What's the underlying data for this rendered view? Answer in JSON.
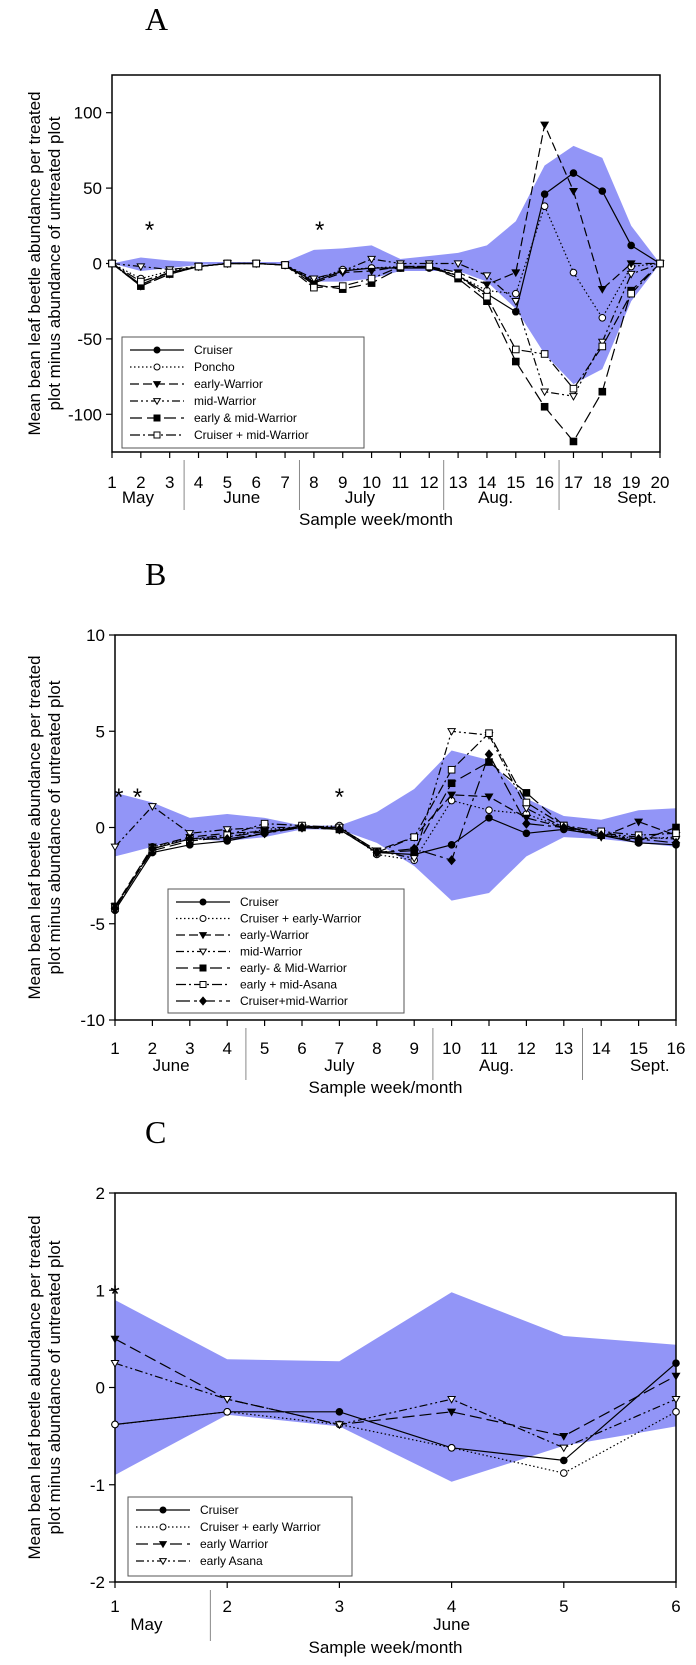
{
  "chart_data": [
    {
      "type": "line",
      "panel": "A",
      "ylabel": "Mean bean leaf beetle abundance per treated plot minus abundance of untreated plot",
      "xlabel": "Sample week/month",
      "ylim": [
        -125,
        125
      ],
      "yticks": [
        100,
        50,
        0,
        -50,
        -100
      ],
      "x": [
        1,
        2,
        3,
        4,
        5,
        6,
        7,
        8,
        9,
        10,
        11,
        12,
        13,
        14,
        15,
        16,
        17,
        18,
        19,
        20
      ],
      "months": [
        {
          "label": "May",
          "center": 1.9
        },
        {
          "label": "June",
          "center": 5.5
        },
        {
          "label": "July",
          "center": 9.6
        },
        {
          "label": "Aug.",
          "center": 14.3
        },
        {
          "label": "Sept.",
          "center": 19.2
        }
      ],
      "month_dividers": [
        3.5,
        7.5,
        12.5,
        16.5
      ],
      "asterisks": [
        2.3,
        8.2
      ],
      "band": {
        "upper": [
          0,
          4,
          2,
          1,
          1,
          1,
          1,
          9,
          10,
          12,
          3,
          5,
          7,
          12,
          28,
          65,
          78,
          70,
          25,
          0
        ],
        "lower": [
          0,
          -5,
          -3,
          -1,
          0,
          0,
          -1,
          -12,
          -12,
          -10,
          -5,
          -5,
          -5,
          -12,
          -30,
          -60,
          -80,
          -70,
          -25,
          0
        ]
      },
      "series": [
        {
          "name": "Cruiser",
          "marker": "filled-circle",
          "dash": "",
          "values": [
            0,
            -14,
            -6,
            -2,
            0,
            0,
            -1,
            -12,
            -5,
            -3,
            -3,
            -3,
            -8,
            -20,
            -32,
            46,
            60,
            48,
            12,
            0
          ]
        },
        {
          "name": "Poncho",
          "marker": "open-circle",
          "dash": "1.5,2.5",
          "values": [
            0,
            -10,
            -5,
            -2,
            0,
            0,
            -1,
            -11,
            -4,
            -3,
            -2,
            -2,
            -8,
            -18,
            -20,
            38,
            -6,
            -36,
            -2,
            0
          ]
        },
        {
          "name": "early-Warrior",
          "marker": "filled-triangle",
          "dash": "9,4",
          "values": [
            0,
            -15,
            -7,
            -2,
            0,
            0,
            -1,
            -13,
            -6,
            -5,
            -2,
            -2,
            -6,
            -14,
            -6,
            92,
            48,
            -17,
            0,
            0
          ]
        },
        {
          "name": "mid-Warrior",
          "marker": "open-triangle",
          "dash": "8,3,2,3,2,3",
          "values": [
            0,
            -2,
            -4,
            -2,
            0,
            0,
            -1,
            -10,
            -5,
            3,
            0,
            0,
            0,
            -8,
            -25,
            -85,
            -88,
            -52,
            -7,
            0
          ]
        },
        {
          "name": "early & mid-Warrior",
          "marker": "filled-square",
          "dash": "12,5",
          "values": [
            0,
            -15,
            -7,
            -2,
            0,
            0,
            -1,
            -14,
            -17,
            -13,
            -3,
            -2,
            -10,
            -25,
            -65,
            -95,
            -118,
            -85,
            -18,
            0
          ]
        },
        {
          "name": "Cruiser + mid-Warrior",
          "marker": "open-square",
          "dash": "10,3,2,3",
          "values": [
            0,
            -12,
            -6,
            -2,
            0,
            0,
            -1,
            -16,
            -15,
            -10,
            -2,
            -2,
            -8,
            -22,
            -57,
            -60,
            -83,
            -55,
            -20,
            0
          ]
        }
      ]
    },
    {
      "type": "line",
      "panel": "B",
      "ylabel": "Mean bean leaf beetle abundance per treated plot minus abundance of untreated plot",
      "xlabel": "Sample week/month",
      "ylim": [
        -10,
        10
      ],
      "yticks": [
        10,
        5,
        0,
        -5,
        -10
      ],
      "x": [
        1,
        2,
        3,
        4,
        5,
        6,
        7,
        8,
        9,
        10,
        11,
        12,
        13,
        14,
        15,
        16
      ],
      "months": [
        {
          "label": "June",
          "center": 2.5
        },
        {
          "label": "July",
          "center": 7.0
        },
        {
          "label": "Aug.",
          "center": 11.2
        },
        {
          "label": "Sept.",
          "center": 15.3
        }
      ],
      "month_dividers": [
        4.5,
        9.5,
        13.5
      ],
      "asterisks": [
        1.1,
        1.6,
        7.0
      ],
      "band": {
        "upper": [
          1.8,
          1.3,
          0.5,
          0.7,
          0.5,
          0.1,
          0.1,
          0.8,
          2.0,
          4.0,
          3.5,
          1.5,
          0.6,
          0.4,
          0.9,
          1.0
        ],
        "lower": [
          -1.5,
          -1.0,
          -0.6,
          -0.7,
          -0.5,
          -0.1,
          -0.1,
          -0.8,
          -2.0,
          -3.8,
          -3.4,
          -1.5,
          -0.5,
          -0.6,
          -0.8,
          -1.0
        ]
      },
      "series": [
        {
          "name": "Cruiser",
          "marker": "filled-circle",
          "dash": "",
          "values": [
            -4.3,
            -1.3,
            -0.9,
            -0.7,
            -0.3,
            0.1,
            -0.1,
            -1.3,
            -1.4,
            -0.9,
            0.5,
            -0.3,
            -0.1,
            -0.4,
            -0.8,
            -0.9
          ]
        },
        {
          "name": "Cruiser + early-Warrior",
          "marker": "open-circle",
          "dash": "1.5,2.5",
          "values": [
            -4.2,
            -1.0,
            -0.6,
            -0.5,
            -0.1,
            0.0,
            0.1,
            -1.4,
            -1.7,
            1.4,
            0.9,
            0.7,
            0.0,
            -0.3,
            -0.6,
            -0.5
          ]
        },
        {
          "name": "early-Warrior",
          "marker": "filled-triangle",
          "dash": "9,4",
          "values": [
            -4.1,
            -1.0,
            -0.5,
            -0.3,
            -0.2,
            0.0,
            0.0,
            -1.2,
            -0.5,
            1.7,
            1.6,
            0.5,
            0.0,
            -0.5,
            0.3,
            -0.4
          ]
        },
        {
          "name": "mid-Warrior",
          "marker": "open-triangle",
          "dash": "8,3,2,3,2,3",
          "values": [
            -1.0,
            1.1,
            -0.3,
            -0.1,
            0.0,
            0.0,
            0.0,
            -1.2,
            -1.6,
            5.0,
            4.8,
            1.0,
            0.0,
            -0.3,
            -0.5,
            -0.6
          ]
        },
        {
          "name": "early- & Mid-Warrior",
          "marker": "filled-square",
          "dash": "12,5",
          "values": [
            -4.1,
            -1.2,
            -0.7,
            -0.5,
            -0.2,
            0.0,
            -0.1,
            -1.3,
            -1.2,
            2.3,
            3.4,
            1.8,
            0.1,
            -0.4,
            -0.7,
            0.0
          ]
        },
        {
          "name": "early + mid-Asana",
          "marker": "open-square",
          "dash": "10,3,2,3",
          "values": [
            -4.2,
            -1.1,
            -0.6,
            -0.4,
            0.2,
            0.1,
            0.0,
            -1.3,
            -0.5,
            3.0,
            4.9,
            1.3,
            0.1,
            -0.2,
            -0.4,
            -0.3
          ]
        },
        {
          "name": "Cruiser+mid-Warrior",
          "marker": "filled-diamond",
          "dash": "14,4,3,4",
          "values": [
            -4.2,
            -1.1,
            -0.6,
            -0.6,
            -0.3,
            0.0,
            -0.1,
            -1.3,
            -1.1,
            -1.7,
            3.8,
            0.2,
            0.0,
            -0.4,
            -0.6,
            -0.8
          ]
        }
      ]
    },
    {
      "type": "line",
      "panel": "C",
      "ylabel": "Mean bean leaf beetle abundance per treated plot minus abundance of untreated plot",
      "xlabel": "Sample week/month",
      "ylim": [
        -2,
        2
      ],
      "yticks": [
        2,
        1,
        0,
        -1,
        -2
      ],
      "x": [
        1,
        2,
        3,
        4,
        5,
        6
      ],
      "months": [
        {
          "label": "May",
          "center": 1.28
        },
        {
          "label": "June",
          "center": 4.0
        }
      ],
      "month_dividers": [
        1.85
      ],
      "asterisks": [
        1.0
      ],
      "band": {
        "upper": [
          0.9,
          0.29,
          0.27,
          0.98,
          0.53,
          0.44
        ],
        "lower": [
          -0.9,
          -0.28,
          -0.4,
          -0.97,
          -0.6,
          -0.4
        ]
      },
      "series": [
        {
          "name": "Cruiser",
          "marker": "filled-circle",
          "dash": "",
          "values": [
            -0.38,
            -0.25,
            -0.25,
            -0.62,
            -0.75,
            0.25
          ]
        },
        {
          "name": "Cruiser + early Warrior",
          "marker": "open-circle",
          "dash": "1.5,2.5",
          "values": [
            -0.38,
            -0.25,
            -0.38,
            -0.62,
            -0.88,
            -0.25
          ]
        },
        {
          "name": "early Warrior",
          "marker": "filled-triangle",
          "dash": "12,5",
          "values": [
            0.5,
            -0.12,
            -0.38,
            -0.25,
            -0.5,
            0.12
          ]
        },
        {
          "name": "early Asana",
          "marker": "open-triangle",
          "dash": "8,3,2,3,2,3",
          "values": [
            0.25,
            -0.12,
            -0.38,
            -0.12,
            -0.62,
            -0.12
          ]
        }
      ]
    }
  ]
}
